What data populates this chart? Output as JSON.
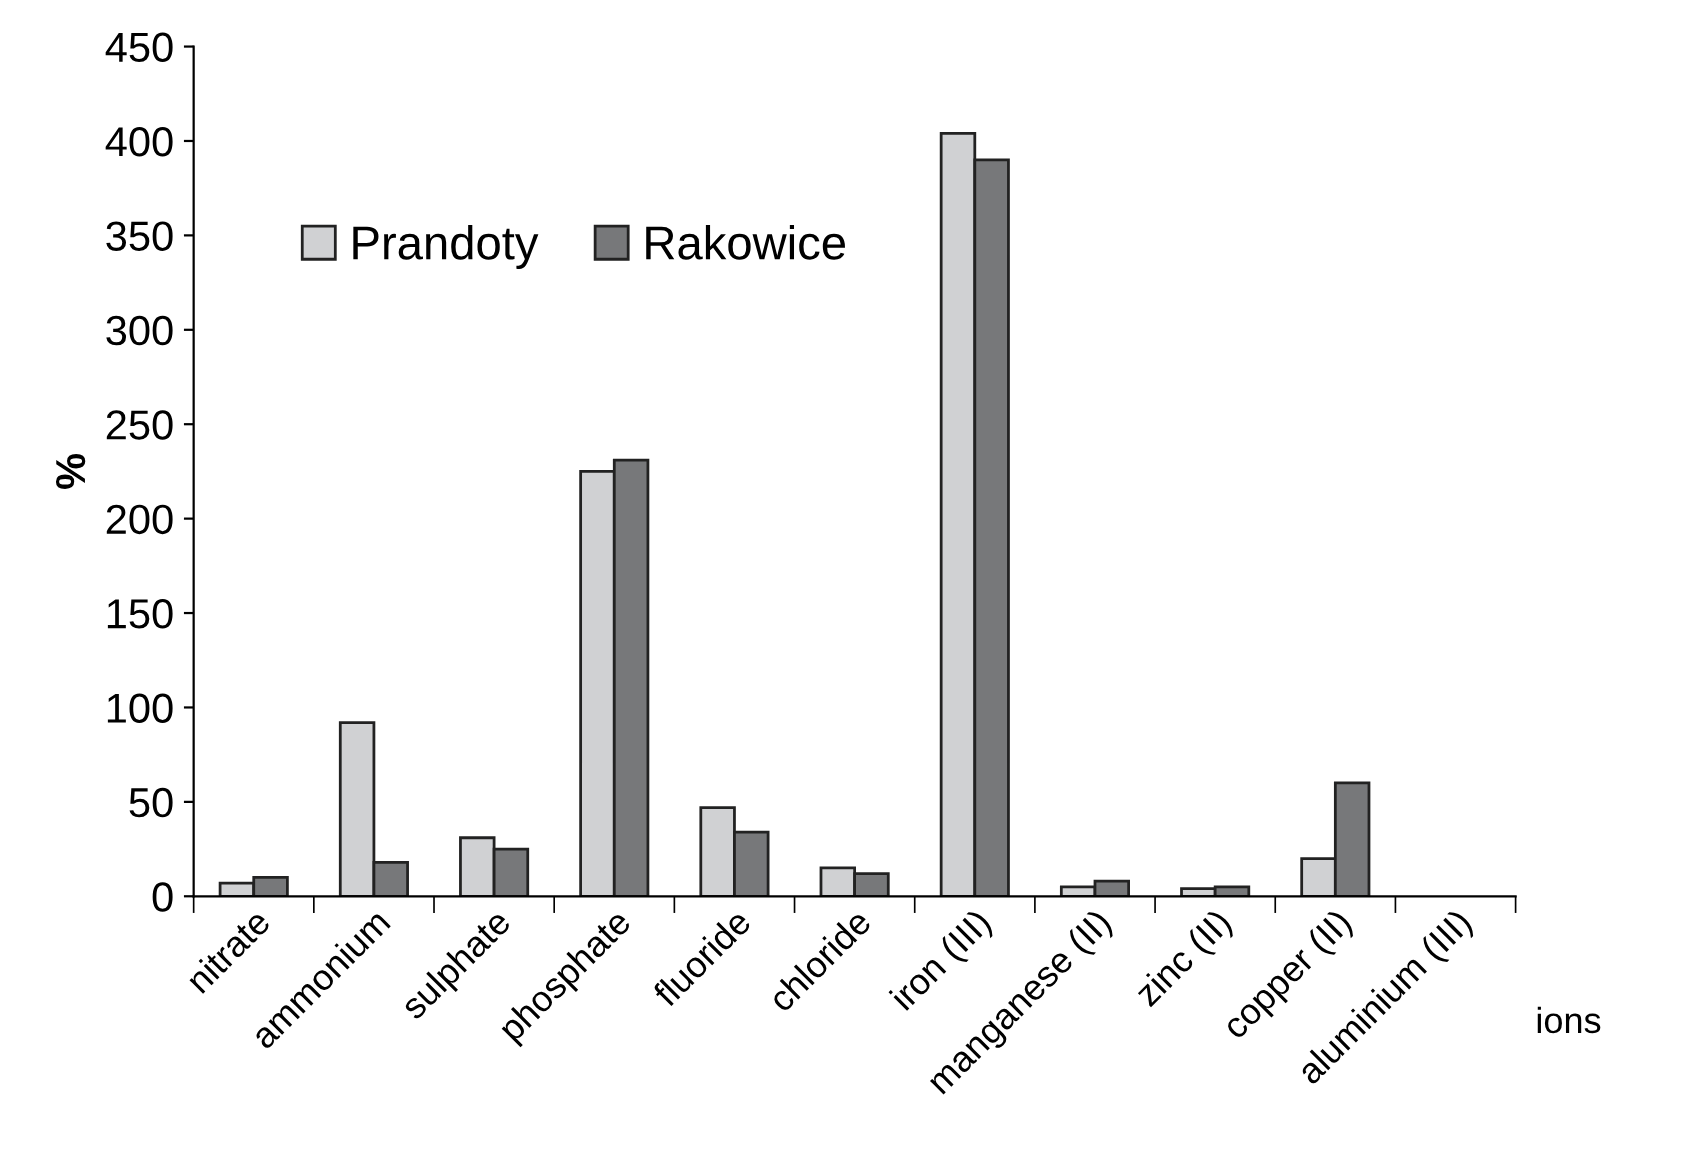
{
  "chart_data": {
    "type": "bar",
    "xlabel": "ions",
    "ylabel": "%",
    "categories": [
      "nitrate",
      "ammonium",
      "sulphate",
      "phosphate",
      "fluoride",
      "chloride",
      "iron (III)",
      "manganese (II)",
      "zinc (II)",
      "copper (II)",
      "aluminium (III)"
    ],
    "series": [
      {
        "name": "Prandoty",
        "color": "#d0d1d3",
        "values": [
          7,
          92,
          31,
          225,
          47,
          15,
          404,
          5,
          4,
          20,
          null
        ]
      },
      {
        "name": "Rakowice",
        "color": "#77787a",
        "values": [
          10,
          18,
          25,
          231,
          34,
          12,
          390,
          8,
          5,
          60,
          null
        ]
      }
    ],
    "ylim": [
      0,
      450
    ],
    "yticks": [
      0,
      50,
      100,
      150,
      200,
      250,
      300,
      350,
      400,
      450
    ],
    "grid": false,
    "legend": "top left"
  }
}
